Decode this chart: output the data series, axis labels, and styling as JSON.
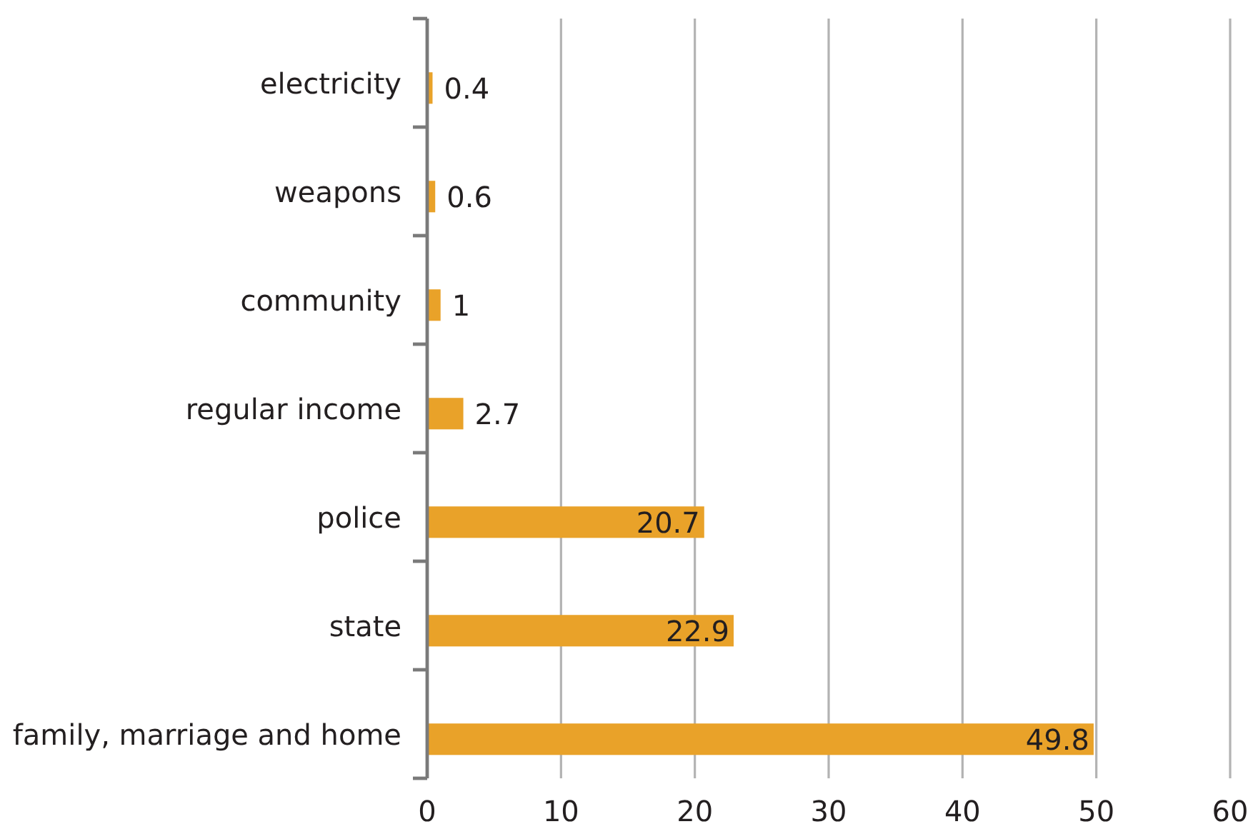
{
  "chart_data": {
    "type": "bar",
    "orientation": "horizontal",
    "categories": [
      "electricity",
      "weapons",
      "community",
      "regular income",
      "police",
      "state",
      "family, marriage and home"
    ],
    "values": [
      0.4,
      0.6,
      1,
      2.7,
      20.7,
      22.9,
      49.8
    ],
    "color": "#e9a229",
    "xlim": [
      0,
      60
    ],
    "xticks": [
      0,
      10,
      20,
      30,
      40,
      50,
      60
    ],
    "grid": "x",
    "data_labels": true
  }
}
